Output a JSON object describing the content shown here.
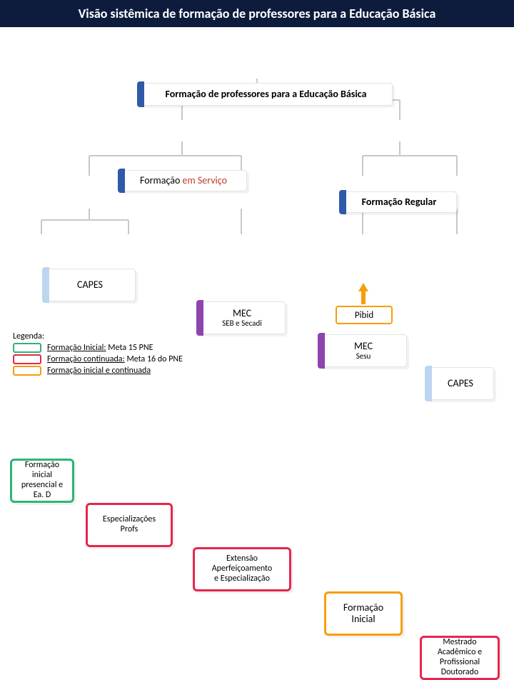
{
  "title": "Visão sistêmica de formação de professores para a Educação Básica",
  "colors": {
    "title_bg": "#0d1b3d",
    "connector": "#c8c8c8",
    "accent_blue": "#2e5aa8",
    "accent_lightblue": "#bcd6f0",
    "green": "#2bb673",
    "red": "#e6264b",
    "purple": "#8e44ad",
    "orange": "#f59e0b"
  },
  "nodes": {
    "root": "Formação de professores para a Educação Básica",
    "servico_pre": "Formação ",
    "servico_em": "em Serviço",
    "regular": "Formação Regular",
    "capes_left": "CAPES",
    "mec1_top": "MEC",
    "mec1_sub": "SEB e Secadi",
    "mec2_top": "MEC",
    "mec2_sub": "Sesu",
    "capes_right": "CAPES",
    "leaf1_l1": "Formação",
    "leaf1_l2": "inicial",
    "leaf1_l3": "presencial e",
    "leaf1_l4": "Ea. D",
    "leaf2_l1": "Especializações",
    "leaf2_l2": "Profs",
    "leaf3_l1": "Extensão",
    "leaf3_l2": "Aperfeiçoamento",
    "leaf3_l3": "e Especialização",
    "leaf4_l1": "Formação",
    "leaf4_l2": "Inicial",
    "leaf5_l1": "Mestrado",
    "leaf5_l2": "Acadêmico e",
    "leaf5_l3": "Profissional",
    "leaf5_l4": "Doutorado",
    "pibid": "Pibid"
  },
  "legend": {
    "title": "Legenda:",
    "items": [
      {
        "color": "#2bb673",
        "pre": "Formação Inicial:",
        "post": " Meta 15 PNE"
      },
      {
        "color": "#e6264b",
        "pre": "Formação  continuada:",
        "post": " Meta 16 do PNE"
      },
      {
        "color": "#f59e0b",
        "pre": "Formação inicial e continuada",
        "post": ""
      }
    ]
  }
}
